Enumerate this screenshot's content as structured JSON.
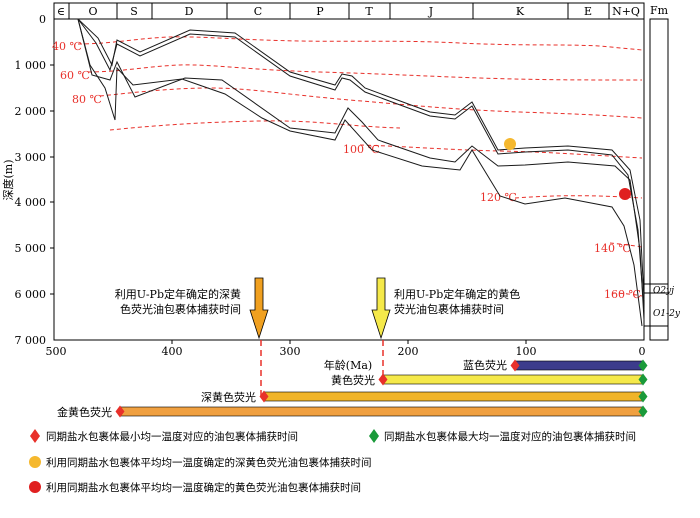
{
  "periods": [
    "∈",
    "O",
    "S",
    "D",
    "C",
    "P",
    "T",
    "J",
    "K",
    "E",
    "N+Q"
  ],
  "y_axis": {
    "label": "深度(m)",
    "ticks": [
      "0",
      "1 000",
      "2 000",
      "3 000",
      "4 000",
      "5 000",
      "6 000",
      "7 000"
    ]
  },
  "x_axis": {
    "label": "年龄(Ma)",
    "ticks": [
      "500",
      "400",
      "300",
      "200",
      "100",
      "0"
    ]
  },
  "isotherms": [
    "40 ℃",
    "60 ℃",
    "80 ℃",
    "100 ℃",
    "120 ℃",
    "140 ℃",
    "160 ℃"
  ],
  "formation_column": {
    "title": "Fm",
    "labels": [
      "O2yj",
      "O1-2y"
    ]
  },
  "callouts": {
    "deep_yellow": [
      "利用U-Pb定年确定的深黄",
      "色荧光油包裹体捕获时间"
    ],
    "yellow": [
      "利用U-Pb定年确定的黄色",
      "荧光油包裹体捕获时间"
    ]
  },
  "bars": [
    {
      "label": "蓝色荧光",
      "color": "#3c3c8c"
    },
    {
      "label": "黄色荧光",
      "color": "#f5e94a"
    },
    {
      "label": "深黄色荧光",
      "color": "#f0b429"
    },
    {
      "label": "金黄色荧光",
      "color": "#f0a040"
    }
  ],
  "legend": [
    "同期盐水包裹体最小均一温度对应的油包裹体捕获时间",
    "同期盐水包裹体最大均一温度对应的油包裹体捕获时间",
    "利用同期盐水包裹体平均均一温度确定的深黄色荧光油包裹体捕获时间",
    "利用同期盐水包裹体平均均一温度确定的黄色荧光油包裹体捕获时间"
  ],
  "colors": {
    "isotherm": "#e8302a",
    "red_marker": "#e8302a",
    "green_marker": "#1a9a3a",
    "orange_dot": "#f5b82e",
    "red_dot": "#e02020"
  }
}
